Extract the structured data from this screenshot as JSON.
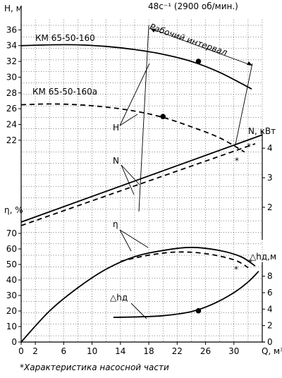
{
  "chart_data": {
    "type": "line",
    "subtitle": "48c⁻¹ (2900 об/мин.)",
    "x_axis": {
      "label": "Q, м³/ч",
      "ticks": [
        0,
        2,
        6,
        10,
        14,
        18,
        22,
        26,
        30
      ],
      "range": [
        0,
        34
      ]
    },
    "head_axis": {
      "label": "H, м",
      "ticks": [
        22,
        24,
        26,
        28,
        30,
        32,
        34,
        36
      ],
      "range": [
        21,
        38
      ]
    },
    "power_axis": {
      "label": "N, кВт",
      "ticks": [
        2,
        3,
        4
      ],
      "range": [
        0.9,
        4.6
      ]
    },
    "eff_axis": {
      "label": "η, %",
      "ticks": [
        0,
        10,
        20,
        30,
        40,
        50,
        60,
        70
      ],
      "range": [
        0,
        80
      ]
    },
    "npsh_axis": {
      "label": "△hд,м",
      "ticks": [
        0,
        2,
        4,
        6,
        8
      ],
      "range": [
        0,
        9
      ]
    },
    "annotations": {
      "pump1": "КМ 65-50-160",
      "pump2": "КМ 65-50-160а",
      "work_range": "Рабочий интервал",
      "h_label": "H",
      "n_label": "N",
      "eta_label": "η",
      "npsh_label": "△hд",
      "asterisk": "*",
      "footnote": "*Характеристика насосной части"
    },
    "series": [
      {
        "name": "H КМ 65-50-160",
        "axis": "head",
        "style": "solid",
        "x": [
          0,
          4,
          8,
          12,
          16,
          20,
          24,
          28,
          32.5
        ],
        "y": [
          34.0,
          34.1,
          34.1,
          33.9,
          33.5,
          32.9,
          32.0,
          30.6,
          28.5
        ]
      },
      {
        "name": "H КМ 65-50-160а",
        "axis": "head",
        "style": "dashed",
        "x": [
          0,
          4,
          8,
          12,
          16,
          20,
          24,
          28,
          31.5
        ],
        "y": [
          26.5,
          26.6,
          26.5,
          26.2,
          25.7,
          24.9,
          23.7,
          22.3,
          20.5
        ]
      },
      {
        "name": "N КМ 65-50-160",
        "axis": "power",
        "style": "solid",
        "x": [
          0,
          34
        ],
        "y": [
          1.5,
          4.45
        ]
      },
      {
        "name": "N КМ 65-50-160а",
        "axis": "power",
        "style": "dashed",
        "x": [
          0,
          33
        ],
        "y": [
          1.38,
          4.15
        ]
      },
      {
        "name": "η КМ 65-50-160",
        "axis": "eff",
        "style": "solid",
        "x": [
          0,
          4,
          8,
          12,
          16,
          20,
          24,
          28,
          31,
          33
        ],
        "y": [
          0,
          20,
          35,
          47,
          55,
          59,
          61,
          59,
          55,
          49
        ]
      },
      {
        "name": "η КМ 65-50-160а",
        "axis": "eff",
        "style": "dashed",
        "x": [
          14,
          18,
          22,
          26,
          30,
          32
        ],
        "y": [
          52,
          56,
          58,
          57,
          53,
          48
        ]
      },
      {
        "name": "△hд",
        "axis": "npsh",
        "style": "solid",
        "x": [
          13,
          16,
          20,
          24,
          27,
          30,
          32,
          33.5
        ],
        "y": [
          3.0,
          3.05,
          3.2,
          3.7,
          4.6,
          6.0,
          7.3,
          8.6
        ]
      }
    ],
    "markers": [
      {
        "axis": "head",
        "x": 25,
        "y": 32.0
      },
      {
        "axis": "head",
        "x": 20,
        "y": 25.0
      },
      {
        "axis": "npsh",
        "x": 25,
        "y": 3.8
      }
    ],
    "work_interval": [
      17,
      33
    ],
    "grid": true
  }
}
